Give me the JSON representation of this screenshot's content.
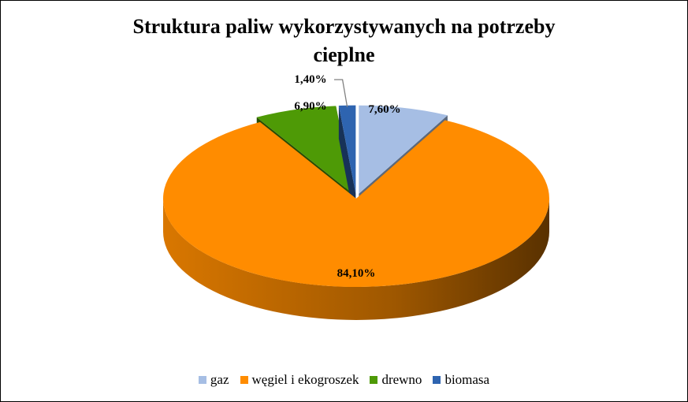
{
  "chart_data": {
    "type": "pie",
    "title_lines": [
      "Struktura paliw wykorzystywanych na potrzeby",
      "cieplne"
    ],
    "slices": [
      {
        "label": "gaz",
        "value": 7.6,
        "data_label": "7,60%",
        "color": "#a6bee4"
      },
      {
        "label": "węgiel i ekogroszek",
        "value": 84.1,
        "data_label": "84,10%",
        "color": "#ff8c00"
      },
      {
        "label": "drewno",
        "value": 6.9,
        "data_label": "6,90%",
        "color": "#4e9a06"
      },
      {
        "label": "biomasa",
        "value": 1.4,
        "data_label": "1,40%",
        "color": "#2e64b0"
      }
    ],
    "legend_position": "bottom",
    "three_d": true,
    "exploded": true
  }
}
